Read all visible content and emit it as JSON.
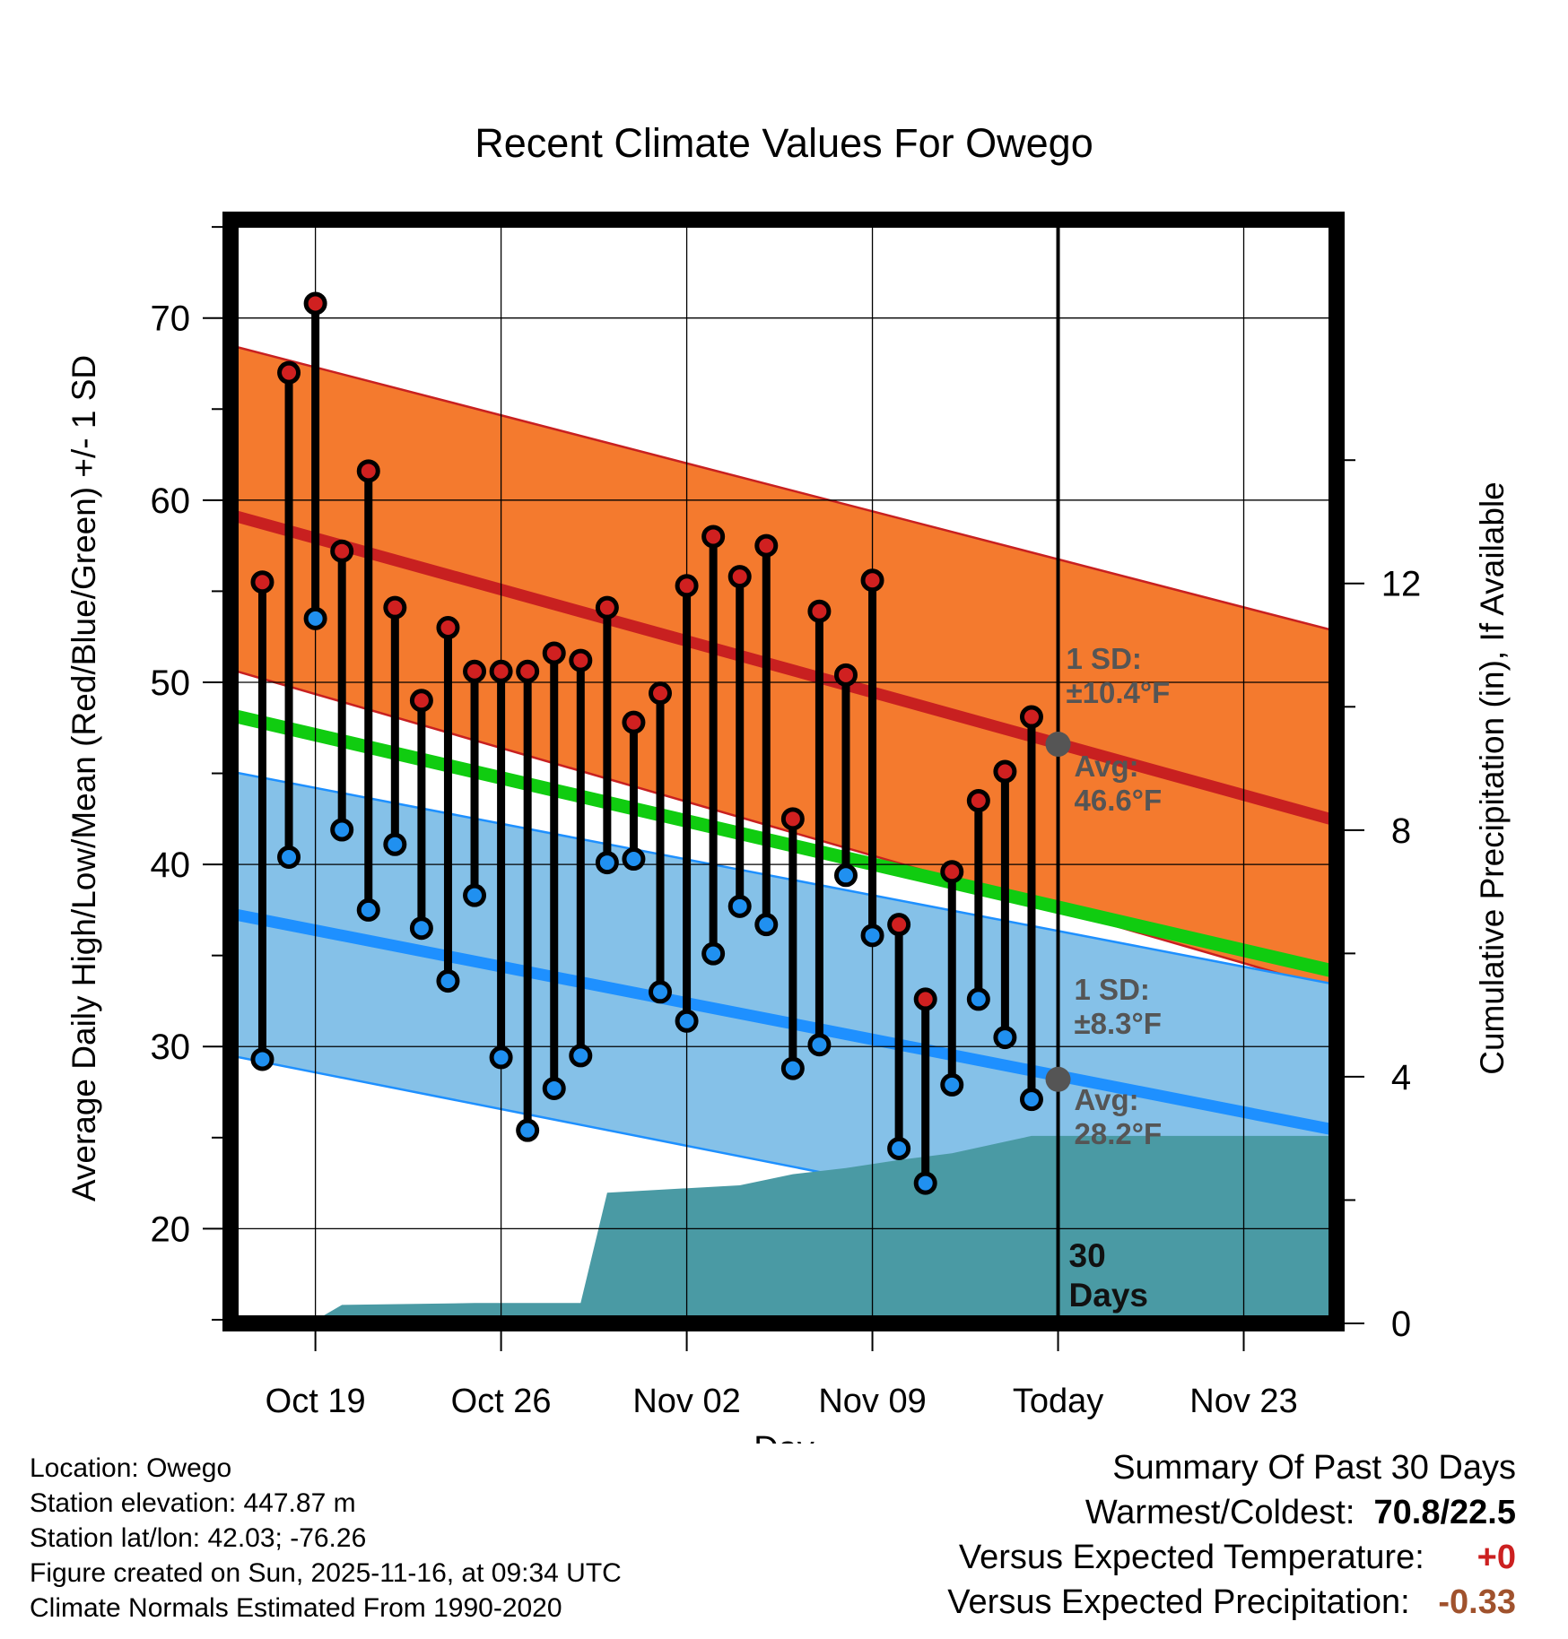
{
  "chart_data": {
    "type": "line",
    "title": "Recent Climate Values For Owego",
    "xlabel": "Day",
    "ylabel": "Average Daily High/Low/Mean (Red/Blue/Green) +/- 1 SD",
    "y2label": "Cumulative Precipitation (in), If Available",
    "xlim": [
      -3.2,
      38.5
    ],
    "ylim": [
      14.8,
      75.4
    ],
    "y2lim": [
      0,
      17.9
    ],
    "x_ticks": [
      {
        "day": 0,
        "label": "Oct 19"
      },
      {
        "day": 7,
        "label": "Oct 26"
      },
      {
        "day": 14,
        "label": "Nov 02"
      },
      {
        "day": 21,
        "label": "Nov 09"
      },
      {
        "day": 28,
        "label": "Today"
      },
      {
        "day": 35,
        "label": "Nov 23"
      }
    ],
    "y_ticks": [
      20,
      30,
      40,
      50,
      60,
      70
    ],
    "y2_ticks": [
      0,
      4,
      8,
      12
    ],
    "today_day": 28,
    "today_label": "30\nDays",
    "normals": {
      "high_mean": [
        59.2,
        42.4
      ],
      "high_sd_upper": [
        68.5,
        52.8
      ],
      "high_sd_lower": [
        50.7,
        33.1
      ],
      "low_mean": [
        37.3,
        25.4
      ],
      "low_sd_upper": [
        45.1,
        33.4
      ],
      "low_sd_lower": [
        29.5,
        17.5
      ],
      "daily_mean": [
        48.2,
        34.1
      ]
    },
    "annotations": {
      "high_sd": "1 SD:\n±10.4°F",
      "high_avg": "Avg:\n46.6°F",
      "low_sd": "1 SD:\n±8.3°F",
      "low_avg": "Avg:\n28.2°F",
      "high_avg_value": 46.6,
      "low_avg_value": 28.2
    },
    "daily": {
      "days": [
        -2,
        -1,
        0,
        1,
        2,
        3,
        4,
        5,
        6,
        7,
        8,
        9,
        10,
        11,
        12,
        13,
        14,
        15,
        16,
        17,
        18,
        19,
        20,
        21,
        22,
        23,
        24,
        25,
        26,
        27
      ],
      "highs": [
        55.5,
        67.0,
        70.8,
        57.2,
        61.6,
        54.1,
        49.0,
        53.0,
        50.6,
        50.6,
        50.6,
        51.6,
        51.2,
        54.1,
        47.8,
        49.4,
        55.3,
        58.0,
        55.8,
        57.5,
        42.5,
        53.9,
        50.4,
        55.6,
        36.7,
        32.6,
        39.6,
        43.5,
        45.1,
        48.1
      ],
      "lows": [
        29.3,
        40.4,
        53.5,
        41.9,
        37.5,
        41.1,
        36.5,
        33.6,
        38.3,
        29.4,
        25.4,
        27.7,
        29.5,
        40.1,
        40.3,
        33.0,
        31.4,
        35.1,
        37.7,
        36.7,
        28.8,
        30.1,
        39.4,
        36.1,
        24.4,
        22.5,
        27.9,
        32.6,
        30.5,
        27.1
      ]
    },
    "precip_cumulative": {
      "days": [
        -3,
        -0.2,
        1,
        6,
        7,
        10,
        11,
        16,
        18,
        20,
        22,
        24,
        27,
        28,
        38.5
      ],
      "values": [
        0,
        0,
        0.3,
        0.33,
        0.33,
        0.33,
        2.12,
        2.24,
        2.42,
        2.52,
        2.65,
        2.76,
        3.04,
        3.04,
        3.04
      ]
    },
    "colors": {
      "high_band": "#f47a2e",
      "high_line": "#c82020",
      "low_band": "#85c1e8",
      "low_line": "#1e90ff",
      "mean_line": "#10cc10",
      "precip": "#4a9aa4",
      "marker_high": "#d02020",
      "marker_low": "#2090f0",
      "avg_dot": "#555555"
    }
  },
  "footer": {
    "location": "Location: Owego",
    "elevation": "Station elevation: 447.87 m",
    "latlon": "Station lat/lon: 42.03; -76.26",
    "created": "Figure created on Sun, 2025-11-16, at 09:34 UTC",
    "normals": "Climate Normals Estimated From 1990-2020"
  },
  "summary": {
    "heading": "Summary Of Past 30 Days",
    "warm_cold_label": "Warmest/Coldest:",
    "warm_cold_value": "70.8/22.5",
    "temp_label": "Versus Expected Temperature:",
    "temp_value": "+0",
    "precip_label": "Versus Expected Precipitation:",
    "precip_value": "-0.33"
  }
}
